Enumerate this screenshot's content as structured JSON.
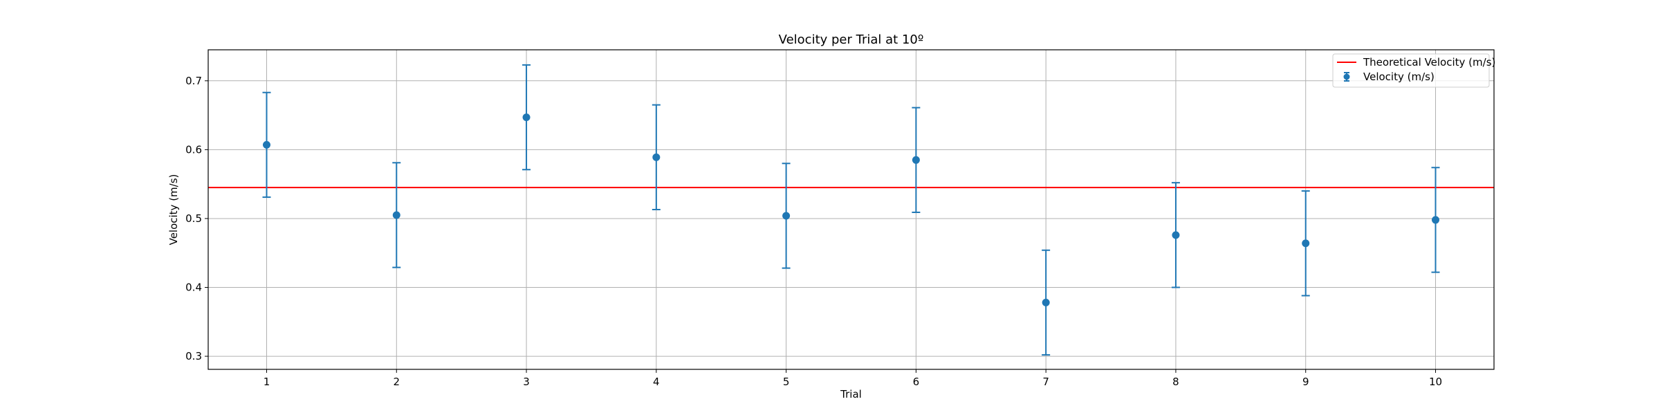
{
  "chart_data": {
    "type": "scatter",
    "title": "Velocity per Trial at 10º",
    "xlabel": "Trial",
    "ylabel": "Velocity (m/s)",
    "x": [
      1,
      2,
      3,
      4,
      5,
      6,
      7,
      8,
      9,
      10
    ],
    "xlim": [
      0.55,
      10.45
    ],
    "ylim": [
      0.281,
      0.745
    ],
    "xticks": [
      1,
      2,
      3,
      4,
      5,
      6,
      7,
      8,
      9,
      10
    ],
    "yticks": [
      0.3,
      0.4,
      0.5,
      0.6,
      0.7
    ],
    "ytick_labels": [
      "0.3",
      "0.4",
      "0.5",
      "0.6",
      "0.7"
    ],
    "grid": true,
    "legend_position": "top-right",
    "series": [
      {
        "name": "Velocity (m/s)",
        "kind": "errorbar",
        "color": "#1f77b4",
        "values": [
          0.607,
          0.505,
          0.647,
          0.589,
          0.504,
          0.585,
          0.378,
          0.476,
          0.464,
          0.498
        ],
        "error_low": [
          0.531,
          0.429,
          0.571,
          0.513,
          0.428,
          0.509,
          0.302,
          0.4,
          0.388,
          0.422
        ],
        "error_high": [
          0.683,
          0.581,
          0.723,
          0.665,
          0.58,
          0.661,
          0.454,
          0.552,
          0.54,
          0.574
        ]
      }
    ],
    "reference_lines": [
      {
        "name": "Theoretical Velocity (m/s)",
        "y": 0.545,
        "color": "#ff0000"
      }
    ]
  }
}
